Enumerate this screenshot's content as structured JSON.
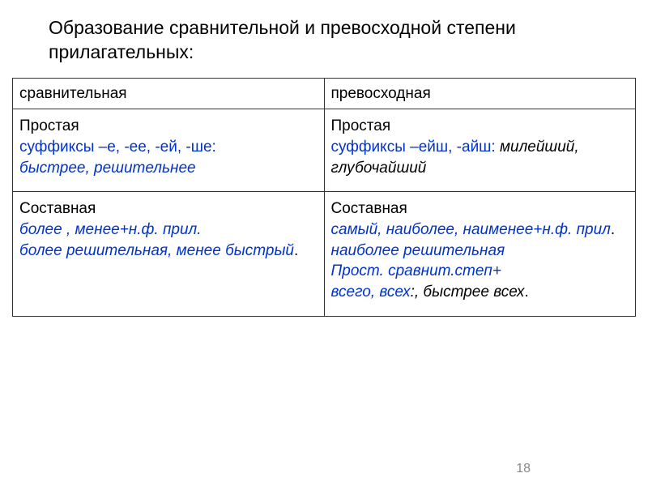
{
  "title": "Образование сравнительной и превосходной степени прилагательных:",
  "table": {
    "header": {
      "col1": "сравнительная",
      "col2": "превосходная"
    },
    "row1": {
      "col1": {
        "line1": "Простая",
        "line2": "суффиксы –е, -ее, -ей, -ше:",
        "line3": " быстрее, решительнее"
      },
      "col2": {
        "line1": "Простая",
        "line2a": "суффиксы –ейш, -айш:",
        "line2b": " милейший, глубочайший"
      }
    },
    "row2": {
      "col1": {
        "line1": "Составная",
        "line2": "более , менее+н.ф. прил.",
        "line3a": " более решительная, менее быстрый",
        "line3b": "."
      },
      "col2": {
        "line1": "Составная",
        "line2": "самый, наиболее, наименее+н.ф. прил",
        "line2dot": ".",
        "line3": "наиболее решительная",
        "line4": "Прост. сравнит.степ+",
        "line5a": " всего, всех",
        "line5b": ":, быстрее всех",
        "line5c": "."
      }
    }
  },
  "pageNumber": "18",
  "colors": {
    "black": "#000000",
    "blue": "#0033cc",
    "border": "#333333",
    "background": "#ffffff",
    "pageNum": "#888888"
  }
}
